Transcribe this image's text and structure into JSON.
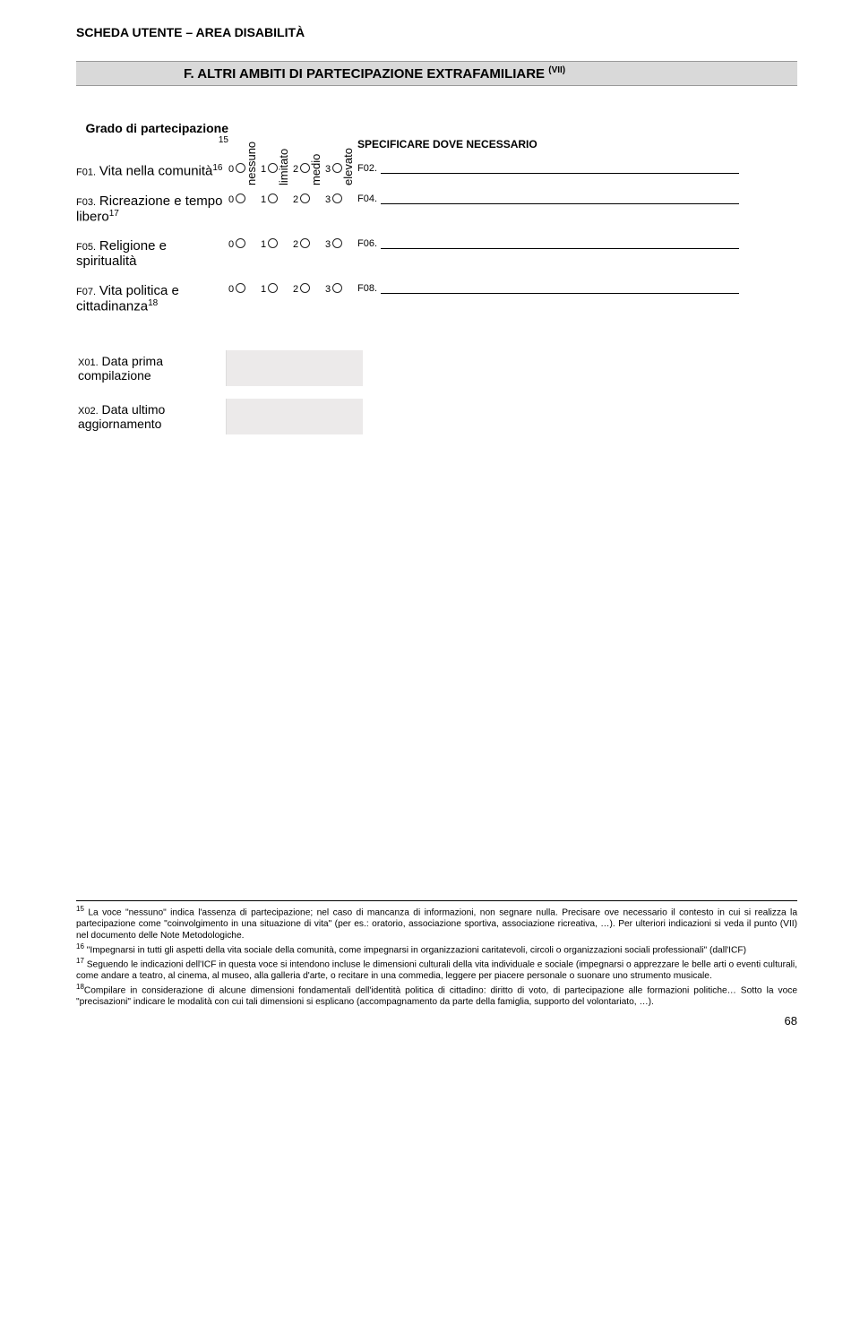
{
  "header": "SCHEDA UTENTE – AREA DISABILITÀ",
  "section": {
    "prefix": "F.",
    "title": "ALTRI AMBITI DI PARTECIPAZIONE EXTRAFAMILIARE",
    "sup": "(VII)"
  },
  "scale_head": {
    "left_label": "Grado di partecipazione",
    "left_sup": "15",
    "cols": [
      "nessuno",
      "limitato",
      "medio",
      "elevato"
    ],
    "right_label": "SPECIFICARE DOVE NECESSARIO"
  },
  "rows": [
    {
      "code": "F01.",
      "label": "Vita nella comunità",
      "sup": "16",
      "spec_code": "F02."
    },
    {
      "code": "F03.",
      "label": "Ricreazione e tempo libero",
      "sup": "17",
      "spec_code": "F04."
    },
    {
      "code": "F05.",
      "label": "Religione e spiritualità",
      "sup": "",
      "spec_code": "F06."
    },
    {
      "code": "F07.",
      "label": "Vita politica e cittadinanza",
      "sup": "18",
      "spec_code": "F08."
    }
  ],
  "radio_values": [
    "0",
    "1",
    "2",
    "3"
  ],
  "dates": [
    {
      "code": "X01.",
      "label": "Data prima compilazione"
    },
    {
      "code": "X02.",
      "label": "Data ultimo aggiornamento"
    }
  ],
  "footnotes": {
    "n15": "La voce \"nessuno\" indica l'assenza di partecipazione; nel caso di mancanza di informazioni, non segnare nulla. Precisare ove necessario il contesto in cui si realizza la partecipazione come \"coinvolgimento in una situazione di vita\" (per es.: oratorio, associazione sportiva, associazione ricreativa, …). Per ulteriori indicazioni si veda il punto (VII) nel documento delle Note Metodologiche.",
    "n16": "\"Impegnarsi in tutti gli aspetti della vita sociale della comunità, come impegnarsi in organizzazioni caritatevoli, circoli o organizzazioni sociali professionali\" (dall'ICF)",
    "n17": "Seguendo le indicazioni dell'ICF in questa voce si intendono incluse le dimensioni culturali della vita individuale e sociale (impegnarsi o apprezzare le belle arti o eventi culturali, come andare a teatro, al cinema, al museo, alla galleria d'arte, o recitare in una commedia, leggere per piacere personale o suonare uno strumento musicale.",
    "n18": "Compilare in considerazione di alcune dimensioni fondamentali dell'identità politica di cittadino: diritto di voto, di partecipazione alle formazioni politiche… Sotto la voce \"precisazioni\" indicare le modalità con cui tali dimensioni si esplicano (accompagnamento da parte della famiglia, supporto del volontariato, …)."
  },
  "page_number": "68"
}
